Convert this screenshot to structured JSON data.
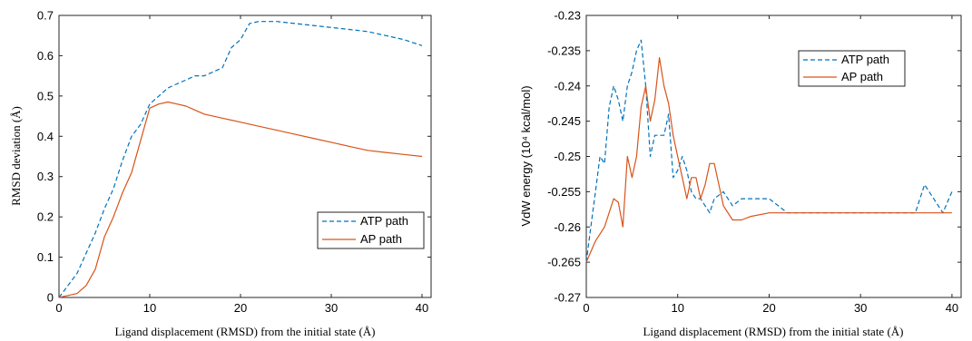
{
  "chart_data": [
    {
      "type": "line",
      "xlabel": "Ligand displacement (RMSD) from the initial state (Å)",
      "ylabel": "RMSD deviation (Å)",
      "xlim": [
        0,
        41
      ],
      "ylim": [
        0,
        0.7
      ],
      "xticks": [
        "0",
        "10",
        "20",
        "30",
        "40"
      ],
      "yticks": [
        "0",
        "0.1",
        "0.2",
        "0.3",
        "0.4",
        "0.5",
        "0.6",
        "0.7"
      ],
      "grid": false,
      "legend_position": "lower-right",
      "series": [
        {
          "name": "ATP path",
          "color": "#0072BD",
          "style": "dashed",
          "x": [
            0,
            1,
            2,
            3,
            4,
            5,
            6,
            7,
            8,
            9,
            10,
            11,
            12,
            13,
            14,
            15,
            16,
            17,
            18,
            19,
            20,
            21,
            22,
            23,
            24,
            26,
            28,
            30,
            32,
            34,
            36,
            38,
            40
          ],
          "y": [
            0,
            0.03,
            0.06,
            0.11,
            0.16,
            0.22,
            0.27,
            0.34,
            0.4,
            0.43,
            0.48,
            0.5,
            0.52,
            0.53,
            0.54,
            0.55,
            0.55,
            0.56,
            0.57,
            0.62,
            0.64,
            0.68,
            0.685,
            0.685,
            0.685,
            0.68,
            0.675,
            0.67,
            0.665,
            0.66,
            0.65,
            0.64,
            0.625
          ]
        },
        {
          "name": "AP path",
          "color": "#D95319",
          "style": "solid",
          "x": [
            0,
            1,
            2,
            3,
            4,
            5,
            6,
            7,
            8,
            9,
            10,
            11,
            12,
            13,
            14,
            15,
            16,
            17,
            18,
            20,
            22,
            24,
            26,
            28,
            30,
            32,
            34,
            36,
            38,
            40
          ],
          "y": [
            0,
            0.005,
            0.01,
            0.03,
            0.07,
            0.15,
            0.2,
            0.26,
            0.31,
            0.39,
            0.47,
            0.48,
            0.485,
            0.48,
            0.475,
            0.465,
            0.455,
            0.45,
            0.445,
            0.435,
            0.425,
            0.415,
            0.405,
            0.395,
            0.385,
            0.375,
            0.365,
            0.36,
            0.355,
            0.35
          ]
        }
      ]
    },
    {
      "type": "line",
      "xlabel": "Ligand displacement (RMSD) from the initial state (Å)",
      "ylabel": "VdW energy (10⁴ kcal/mol)",
      "xlim": [
        0,
        41
      ],
      "ylim": [
        -0.27,
        -0.23
      ],
      "xticks": [
        "0",
        "10",
        "20",
        "30",
        "40"
      ],
      "yticks": [
        "-0.27",
        "-0.265",
        "-0.26",
        "-0.255",
        "-0.25",
        "-0.245",
        "-0.24",
        "-0.235",
        "-0.23"
      ],
      "grid": false,
      "legend_position": "top-right",
      "series": [
        {
          "name": "ATP path",
          "color": "#0072BD",
          "style": "dashed",
          "x": [
            0,
            0.5,
            1,
            1.5,
            2,
            2.5,
            3,
            3.5,
            4,
            4.5,
            5,
            5.5,
            6,
            6.5,
            7,
            7.5,
            8,
            8.5,
            9,
            9.5,
            10,
            10.5,
            11,
            11.5,
            12,
            12.5,
            13,
            13.5,
            14,
            15,
            16,
            17,
            18,
            19,
            20,
            22,
            24,
            26,
            28,
            30,
            32,
            34,
            36,
            37,
            38,
            39,
            40
          ],
          "y": [
            -0.265,
            -0.26,
            -0.255,
            -0.25,
            -0.251,
            -0.243,
            -0.24,
            -0.242,
            -0.245,
            -0.24,
            -0.238,
            -0.235,
            -0.2335,
            -0.24,
            -0.25,
            -0.247,
            -0.247,
            -0.247,
            -0.244,
            -0.253,
            -0.252,
            -0.25,
            -0.252,
            -0.255,
            -0.256,
            -0.256,
            -0.257,
            -0.258,
            -0.256,
            -0.255,
            -0.257,
            -0.256,
            -0.256,
            -0.256,
            -0.256,
            -0.258,
            -0.258,
            -0.258,
            -0.258,
            -0.258,
            -0.258,
            -0.258,
            -0.258,
            -0.254,
            -0.256,
            -0.258,
            -0.255
          ]
        },
        {
          "name": "AP path",
          "color": "#D95319",
          "style": "solid",
          "x": [
            0,
            1,
            2,
            3,
            3.5,
            4,
            4.5,
            5,
            5.5,
            6,
            6.5,
            7,
            7.5,
            8,
            8.5,
            9,
            9.5,
            10,
            10.5,
            11,
            11.5,
            12,
            12.5,
            13,
            13.5,
            14,
            14.5,
            15,
            16,
            17,
            18,
            20,
            22,
            24,
            26,
            28,
            30,
            32,
            34,
            36,
            38,
            40
          ],
          "y": [
            -0.265,
            -0.262,
            -0.26,
            -0.256,
            -0.2565,
            -0.26,
            -0.25,
            -0.253,
            -0.25,
            -0.243,
            -0.24,
            -0.245,
            -0.242,
            -0.236,
            -0.24,
            -0.2425,
            -0.247,
            -0.25,
            -0.253,
            -0.256,
            -0.253,
            -0.253,
            -0.256,
            -0.254,
            -0.251,
            -0.251,
            -0.254,
            -0.257,
            -0.259,
            -0.259,
            -0.2585,
            -0.258,
            -0.258,
            -0.258,
            -0.258,
            -0.258,
            -0.258,
            -0.258,
            -0.258,
            -0.258,
            -0.258,
            -0.258
          ]
        }
      ]
    }
  ]
}
